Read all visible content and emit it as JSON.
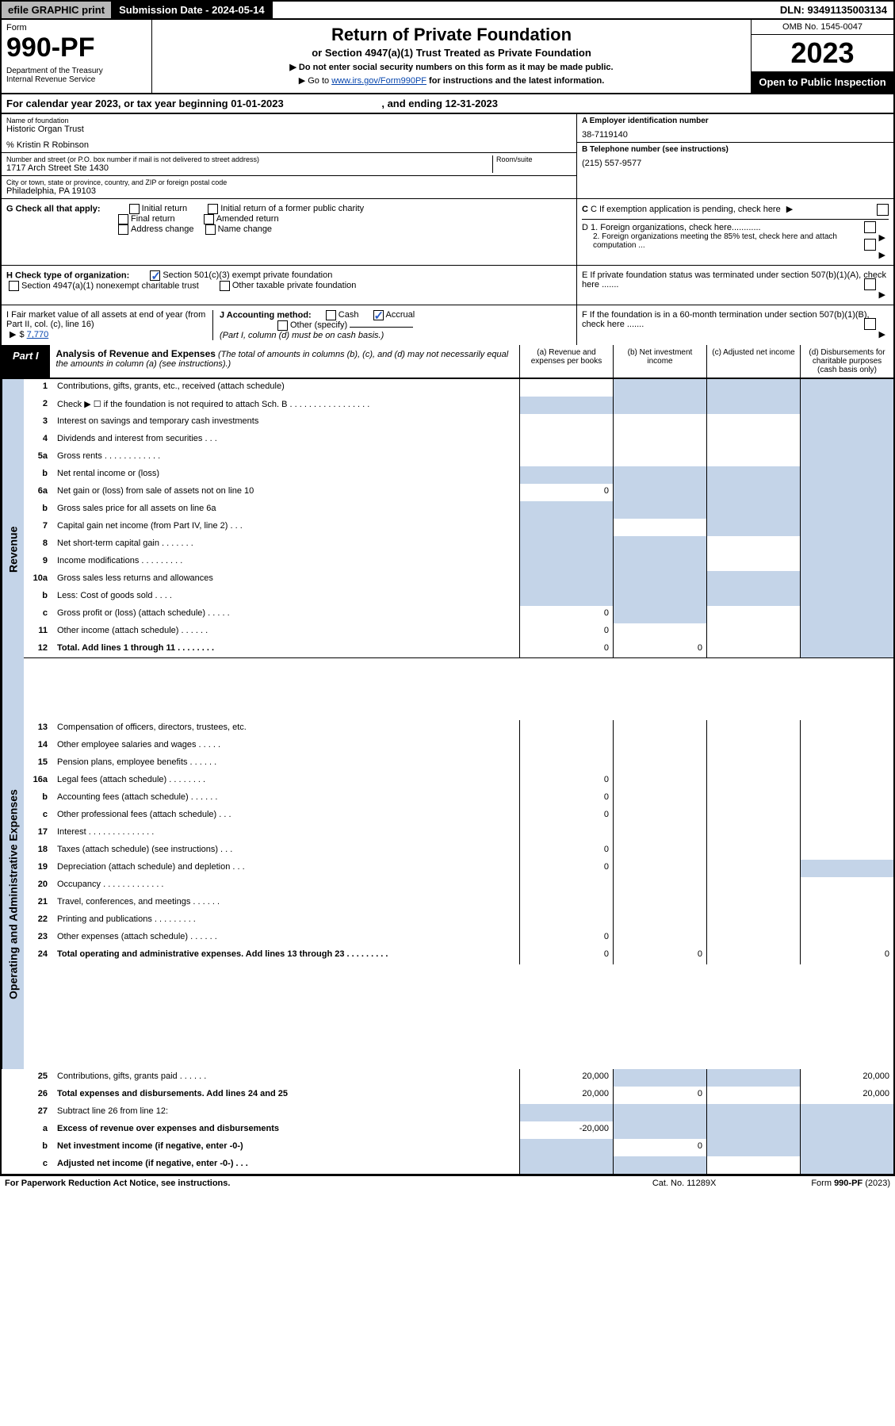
{
  "top": {
    "efile": "efile GRAPHIC print",
    "sub_date_lbl": "Submission Date - 2024-05-14",
    "dln": "DLN: 93491135003134"
  },
  "header": {
    "form_word": "Form",
    "form_no": "990-PF",
    "dept": "Department of the Treasury",
    "irs": "Internal Revenue Service",
    "title": "Return of Private Foundation",
    "subtitle": "or Section 4947(a)(1) Trust Treated as Private Foundation",
    "inst1": "▶ Do not enter social security numbers on this form as it may be made public.",
    "inst2_pre": "▶ Go to ",
    "inst2_link": "www.irs.gov/Form990PF",
    "inst2_post": " for instructions and the latest information.",
    "omb": "OMB No. 1545-0047",
    "year": "2023",
    "open": "Open to Public Inspection"
  },
  "cal": {
    "pre": "For calendar year 2023, or tax year beginning ",
    "begin": "01-01-2023",
    "mid": " , and ending ",
    "end": "12-31-2023"
  },
  "info": {
    "name_lbl": "Name of foundation",
    "name": "Historic Organ Trust",
    "care": "% Kristin R Robinson",
    "addr_lbl": "Number and street (or P.O. box number if mail is not delivered to street address)",
    "room_lbl": "Room/suite",
    "addr": "1717 Arch Street Ste 1430",
    "city_lbl": "City or town, state or province, country, and ZIP or foreign postal code",
    "city": "Philadelphia, PA  19103",
    "a_lbl": "A Employer identification number",
    "a_val": "38-7119140",
    "b_lbl": "B Telephone number (see instructions)",
    "b_val": "(215) 557-9577",
    "c_lbl": "C If exemption application is pending, check here",
    "d1": "D 1. Foreign organizations, check here............",
    "d2": "2. Foreign organizations meeting the 85% test, check here and attach computation ...",
    "e": "E  If private foundation status was terminated under section 507(b)(1)(A), check here .......",
    "f": "F  If the foundation is in a 60-month termination under section 507(b)(1)(B), check here .......",
    "g_lbl": "G Check all that apply:",
    "g_opts": [
      "Initial return",
      "Initial return of a former public charity",
      "Final return",
      "Amended return",
      "Address change",
      "Name change"
    ],
    "h_lbl": "H Check type of organization:",
    "h1": "Section 501(c)(3) exempt private foundation",
    "h2": "Section 4947(a)(1) nonexempt charitable trust",
    "h3": "Other taxable private foundation",
    "i_lbl": "I Fair market value of all assets at end of year (from Part II, col. (c), line 16)",
    "i_val": "7,770",
    "j_lbl": "J Accounting method:",
    "j_cash": "Cash",
    "j_acc": "Accrual",
    "j_oth": "Other (specify)",
    "j_note": "(Part I, column (d) must be on cash basis.)"
  },
  "part1": {
    "tab": "Part I",
    "title": "Analysis of Revenue and Expenses",
    "title_note": " (The total of amounts in columns (b), (c), and (d) may not necessarily equal the amounts in column (a) (see instructions).)",
    "cols": [
      "(a)   Revenue and expenses per books",
      "(b)   Net investment income",
      "(c)   Adjusted net income",
      "(d)   Disbursements for charitable purposes (cash basis only)"
    ],
    "side_rev": "Revenue",
    "side_exp": "Operating and Administrative Expenses"
  },
  "rows": [
    {
      "n": "1",
      "t": "Contributions, gifts, grants, etc., received (attach schedule)",
      "a": "",
      "b": "S",
      "c": "S",
      "d": "S"
    },
    {
      "n": "2",
      "t": "Check ▶ ☐ if the foundation is not required to attach Sch. B  .  .  .  .  .  .  .  .  .  .  .  .  .  .  .  .  .",
      "a": "S",
      "b": "S",
      "c": "S",
      "d": "S"
    },
    {
      "n": "3",
      "t": "Interest on savings and temporary cash investments",
      "a": "",
      "b": "",
      "c": "",
      "d": "S"
    },
    {
      "n": "4",
      "t": "Dividends and interest from securities   .   .   .",
      "a": "",
      "b": "",
      "c": "",
      "d": "S"
    },
    {
      "n": "5a",
      "t": "Gross rents   .   .   .   .   .   .   .   .   .   .   .   .",
      "a": "",
      "b": "",
      "c": "",
      "d": "S"
    },
    {
      "n": "b",
      "t": "Net rental income or (loss)  ",
      "a": "S",
      "b": "S",
      "c": "S",
      "d": "S"
    },
    {
      "n": "6a",
      "t": "Net gain or (loss) from sale of assets not on line 10",
      "a": "0",
      "b": "S",
      "c": "S",
      "d": "S"
    },
    {
      "n": "b",
      "t": "Gross sales price for all assets on line 6a ",
      "a": "S",
      "b": "S",
      "c": "S",
      "d": "S"
    },
    {
      "n": "7",
      "t": "Capital gain net income (from Part IV, line 2)   .   .   .",
      "a": "S",
      "b": "",
      "c": "S",
      "d": "S"
    },
    {
      "n": "8",
      "t": "Net short-term capital gain   .   .   .   .   .   .   .",
      "a": "S",
      "b": "S",
      "c": "",
      "d": "S"
    },
    {
      "n": "9",
      "t": "Income modifications   .   .   .   .   .   .   .   .   .",
      "a": "S",
      "b": "S",
      "c": "",
      "d": "S"
    },
    {
      "n": "10a",
      "t": "Gross sales less returns and allowances",
      "a": "S",
      "b": "S",
      "c": "S",
      "d": "S"
    },
    {
      "n": "b",
      "t": "Less: Cost of goods sold   .   .   .   .",
      "a": "S",
      "b": "S",
      "c": "S",
      "d": "S"
    },
    {
      "n": "c",
      "t": "Gross profit or (loss) (attach schedule)   .   .   .   .   .",
      "a": "0",
      "b": "S",
      "c": "",
      "d": "S"
    },
    {
      "n": "11",
      "t": "Other income (attach schedule)   .   .   .   .   .   .",
      "a": "0",
      "b": "",
      "c": "",
      "d": "S"
    },
    {
      "n": "12",
      "t": "Total. Add lines 1 through 11   .   .   .   .   .   .   .   .",
      "a": "0",
      "b": "0",
      "c": "",
      "d": "S",
      "bold": true,
      "bb": true
    },
    {
      "n": "13",
      "t": "Compensation of officers, directors, trustees, etc.",
      "a": "",
      "b": "",
      "c": "",
      "d": ""
    },
    {
      "n": "14",
      "t": "Other employee salaries and wages   .   .   .   .   .",
      "a": "",
      "b": "",
      "c": "",
      "d": ""
    },
    {
      "n": "15",
      "t": "Pension plans, employee benefits   .   .   .   .   .   .",
      "a": "",
      "b": "",
      "c": "",
      "d": ""
    },
    {
      "n": "16a",
      "t": "Legal fees (attach schedule)   .   .   .   .   .   .   .   .",
      "a": "0",
      "b": "",
      "c": "",
      "d": ""
    },
    {
      "n": "b",
      "t": "Accounting fees (attach schedule)   .   .   .   .   .   .",
      "a": "0",
      "b": "",
      "c": "",
      "d": ""
    },
    {
      "n": "c",
      "t": "Other professional fees (attach schedule)   .   .   .",
      "a": "0",
      "b": "",
      "c": "",
      "d": ""
    },
    {
      "n": "17",
      "t": "Interest   .   .   .   .   .   .   .   .   .   .   .   .   .   .",
      "a": "",
      "b": "",
      "c": "",
      "d": ""
    },
    {
      "n": "18",
      "t": "Taxes (attach schedule) (see instructions)   .   .   .",
      "a": "0",
      "b": "",
      "c": "",
      "d": ""
    },
    {
      "n": "19",
      "t": "Depreciation (attach schedule) and depletion   .   .   .",
      "a": "0",
      "b": "",
      "c": "",
      "d": "S"
    },
    {
      "n": "20",
      "t": "Occupancy   .   .   .   .   .   .   .   .   .   .   .   .   .",
      "a": "",
      "b": "",
      "c": "",
      "d": ""
    },
    {
      "n": "21",
      "t": "Travel, conferences, and meetings   .   .   .   .   .   .",
      "a": "",
      "b": "",
      "c": "",
      "d": ""
    },
    {
      "n": "22",
      "t": "Printing and publications   .   .   .   .   .   .   .   .   .",
      "a": "",
      "b": "",
      "c": "",
      "d": ""
    },
    {
      "n": "23",
      "t": "Other expenses (attach schedule)   .   .   .   .   .   .",
      "a": "0",
      "b": "",
      "c": "",
      "d": ""
    },
    {
      "n": "24",
      "t": "Total operating and administrative expenses. Add lines 13 through 23   .   .   .   .   .   .   .   .   .",
      "a": "0",
      "b": "0",
      "c": "",
      "d": "0",
      "bold": true
    },
    {
      "n": "25",
      "t": "Contributions, gifts, grants paid   .   .   .   .   .   .",
      "a": "20,000",
      "b": "S",
      "c": "S",
      "d": "20,000"
    },
    {
      "n": "26",
      "t": "Total expenses and disbursements. Add lines 24 and 25",
      "a": "20,000",
      "b": "0",
      "c": "",
      "d": "20,000",
      "bold": true,
      "bb": true
    },
    {
      "n": "27",
      "t": "Subtract line 26 from line 12:",
      "a": "S",
      "b": "S",
      "c": "S",
      "d": "S"
    },
    {
      "n": "a",
      "t": "Excess of revenue over expenses and disbursements",
      "a": "-20,000",
      "b": "S",
      "c": "S",
      "d": "S",
      "bold": true
    },
    {
      "n": "b",
      "t": "Net investment income (if negative, enter -0-)",
      "a": "S",
      "b": "0",
      "c": "S",
      "d": "S",
      "bold": true
    },
    {
      "n": "c",
      "t": "Adjusted net income (if negative, enter -0-)   .   .   .",
      "a": "S",
      "b": "S",
      "c": "",
      "d": "S",
      "bold": true
    }
  ],
  "footer": {
    "left": "For Paperwork Reduction Act Notice, see instructions.",
    "mid": "Cat. No. 11289X",
    "right": "Form 990-PF (2023)"
  },
  "colors": {
    "shade": "#c4d4e8",
    "link": "#0645ad",
    "check": "#2a5dc7"
  }
}
